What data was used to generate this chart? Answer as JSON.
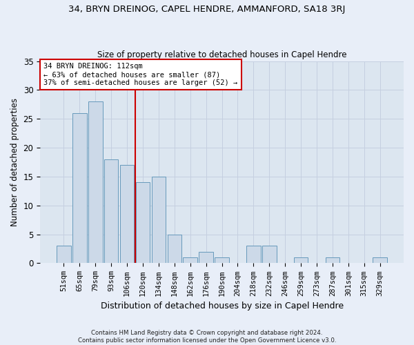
{
  "title": "34, BRYN DREINOG, CAPEL HENDRE, AMMANFORD, SA18 3RJ",
  "subtitle": "Size of property relative to detached houses in Capel Hendre",
  "xlabel": "Distribution of detached houses by size in Capel Hendre",
  "ylabel": "Number of detached properties",
  "bin_labels": [
    "51sqm",
    "65sqm",
    "79sqm",
    "93sqm",
    "106sqm",
    "120sqm",
    "134sqm",
    "148sqm",
    "162sqm",
    "176sqm",
    "190sqm",
    "204sqm",
    "218sqm",
    "232sqm",
    "246sqm",
    "259sqm",
    "273sqm",
    "287sqm",
    "301sqm",
    "315sqm",
    "329sqm"
  ],
  "bar_heights": [
    3,
    26,
    28,
    18,
    17,
    14,
    15,
    5,
    1,
    2,
    1,
    0,
    3,
    3,
    0,
    1,
    0,
    1,
    0,
    0,
    1
  ],
  "bar_color": "#ccd9e8",
  "bar_edge_color": "#6699bb",
  "vline_x_index": 4.5,
  "annotation_text": "34 BRYN DREINOG: 112sqm\n← 63% of detached houses are smaller (87)\n37% of semi-detached houses are larger (52) →",
  "annotation_box_color": "#ffffff",
  "annotation_box_edge_color": "#cc0000",
  "vline_color": "#cc0000",
  "ylim": [
    0,
    35
  ],
  "yticks": [
    0,
    5,
    10,
    15,
    20,
    25,
    30,
    35
  ],
  "grid_color": "#c5cfe0",
  "fig_background_color": "#e8eef8",
  "ax_background_color": "#dce6f0",
  "footer": "Contains HM Land Registry data © Crown copyright and database right 2024.\nContains public sector information licensed under the Open Government Licence v3.0."
}
